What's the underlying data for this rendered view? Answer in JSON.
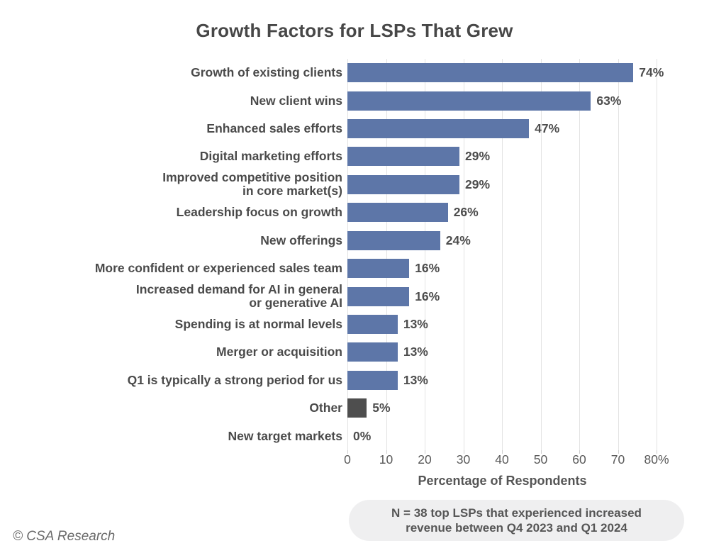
{
  "title": "Growth Factors for LSPs That Grew",
  "footer": {
    "copyright": "© CSA Research",
    "note": "N = 38 top LSPs that experienced increased\nrevenue between Q4 2023 and Q1 2024"
  },
  "colors": {
    "bar": "#5D76A8",
    "bar_other": "#4E4E4E",
    "gridline": "#E3E3E3",
    "title_text": "#474747",
    "category_text": "#4A4A4A",
    "value_text": "#4D4D4D",
    "tick_text": "#595959",
    "note_background": "#EFEFF0"
  },
  "chart_data": {
    "type": "bar",
    "orientation": "horizontal",
    "title": "Growth Factors for LSPs That Grew",
    "xlabel": "Percentage of Respondents",
    "xlim": [
      0,
      80
    ],
    "grid": true,
    "legend": "none",
    "xticks": [
      0,
      10,
      20,
      30,
      40,
      50,
      60,
      70,
      80
    ],
    "xtick_labels": [
      "0",
      "10",
      "20",
      "30",
      "40",
      "50",
      "60",
      "70",
      "80%"
    ],
    "categories": [
      "Growth of existing clients",
      "New client wins",
      "Enhanced sales efforts",
      "Digital marketing efforts",
      "Improved competitive position\nin core market(s)",
      "Leadership focus on growth",
      "New offerings",
      "More confident or experienced sales team",
      "Increased demand for AI in general\nor generative AI",
      "Spending is at normal levels",
      "Merger or acquisition",
      "Q1 is typically a strong period for us",
      "Other",
      "New target markets"
    ],
    "values": [
      74,
      63,
      47,
      29,
      29,
      26,
      24,
      16,
      16,
      13,
      13,
      13,
      5,
      0
    ],
    "value_labels": [
      "74%",
      "63%",
      "47%",
      "29%",
      "29%",
      "26%",
      "24%",
      "16%",
      "16%",
      "13%",
      "13%",
      "13%",
      "5%",
      "0%"
    ],
    "bar_colors": [
      "#5D76A8",
      "#5D76A8",
      "#5D76A8",
      "#5D76A8",
      "#5D76A8",
      "#5D76A8",
      "#5D76A8",
      "#5D76A8",
      "#5D76A8",
      "#5D76A8",
      "#5D76A8",
      "#5D76A8",
      "#4E4E4E",
      "#5D76A8"
    ]
  }
}
